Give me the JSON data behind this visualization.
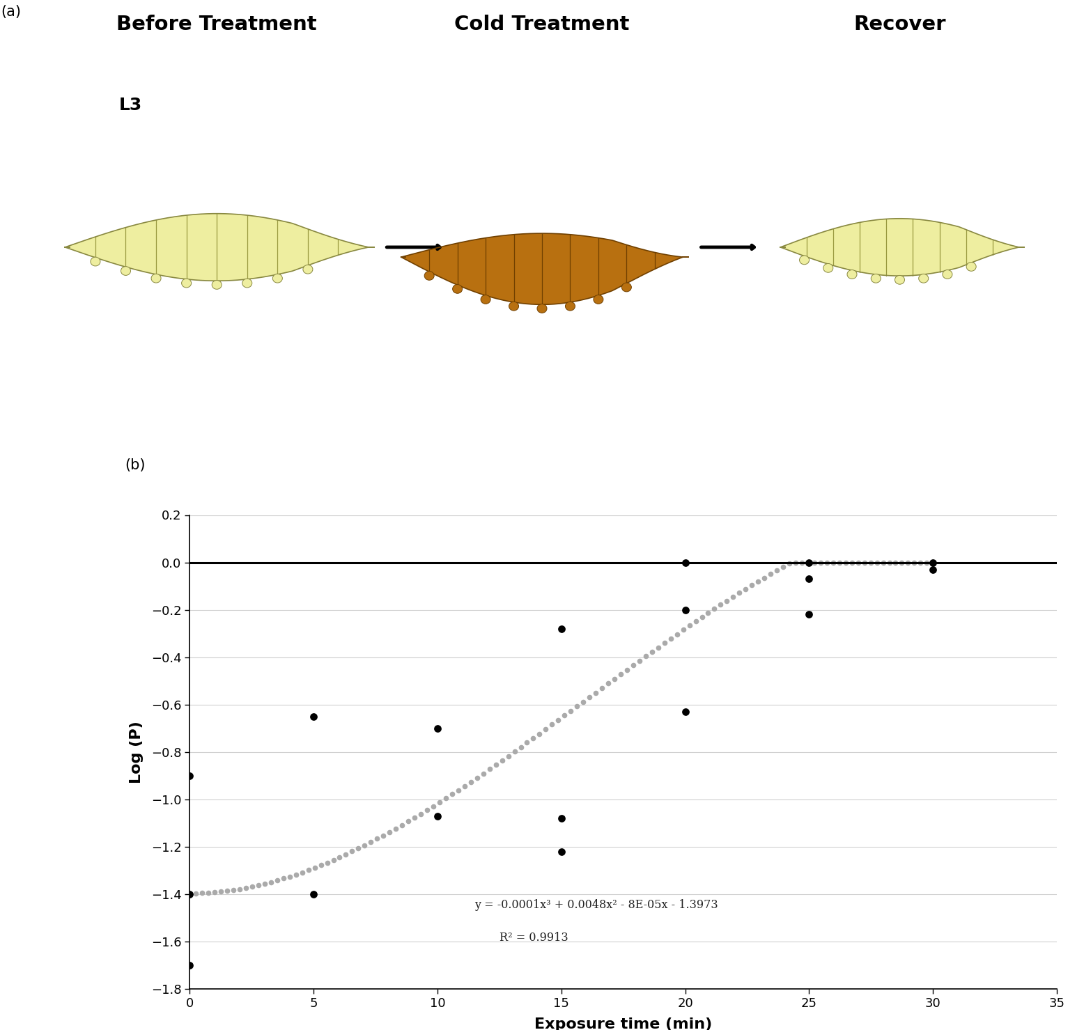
{
  "panel_a_labels": [
    "Before Treatment",
    "Cold Treatment",
    "Recover"
  ],
  "panel_a_sublabel": "L3",
  "panel_b_label": "(b)",
  "panel_a_panel_label": "(a)",
  "scatter_x": [
    0,
    0,
    0,
    5,
    5,
    10,
    10,
    15,
    15,
    15,
    20,
    20,
    20,
    25,
    25,
    25,
    30,
    30
  ],
  "scatter_y": [
    -0.9,
    -1.4,
    -1.7,
    -0.65,
    -1.4,
    -0.7,
    -1.07,
    -0.28,
    -1.08,
    -1.22,
    -0.0,
    -0.2,
    -0.63,
    -0.0,
    -0.07,
    -0.22,
    -0.0,
    -0.03
  ],
  "equation_text": "y = -0.0001x³ + 0.0048x² - 8E-05x - 1.3973",
  "r2_text": "R² = 0.9913",
  "poly_coeffs": [
    -0.0001,
    0.0048,
    -8e-05,
    -1.3973
  ],
  "xlabel": "Exposure time (min)",
  "ylabel": "Log (P)",
  "xlim": [
    0,
    35
  ],
  "ylim": [
    -1.8,
    0.2
  ],
  "yticks": [
    0.2,
    0,
    -0.2,
    -0.4,
    -0.6,
    -0.8,
    -1.0,
    -1.2,
    -1.4,
    -1.6,
    -1.8
  ],
  "xticks": [
    0,
    5,
    10,
    15,
    20,
    25,
    30,
    35
  ],
  "curve_color": "#aaaaaa",
  "scatter_color": "#000000",
  "hline_y": 0,
  "hline_color": "#000000",
  "background_color": "#ffffff",
  "larva_cream_fill": "#eeeea0",
  "larva_cream_edge": "#888840",
  "larva_brown_fill": "#b87010",
  "larva_brown_edge": "#704000",
  "larva_cream_stripes": "#999940",
  "larva_brown_stripes": "#704000",
  "arrow_color": "#000000"
}
